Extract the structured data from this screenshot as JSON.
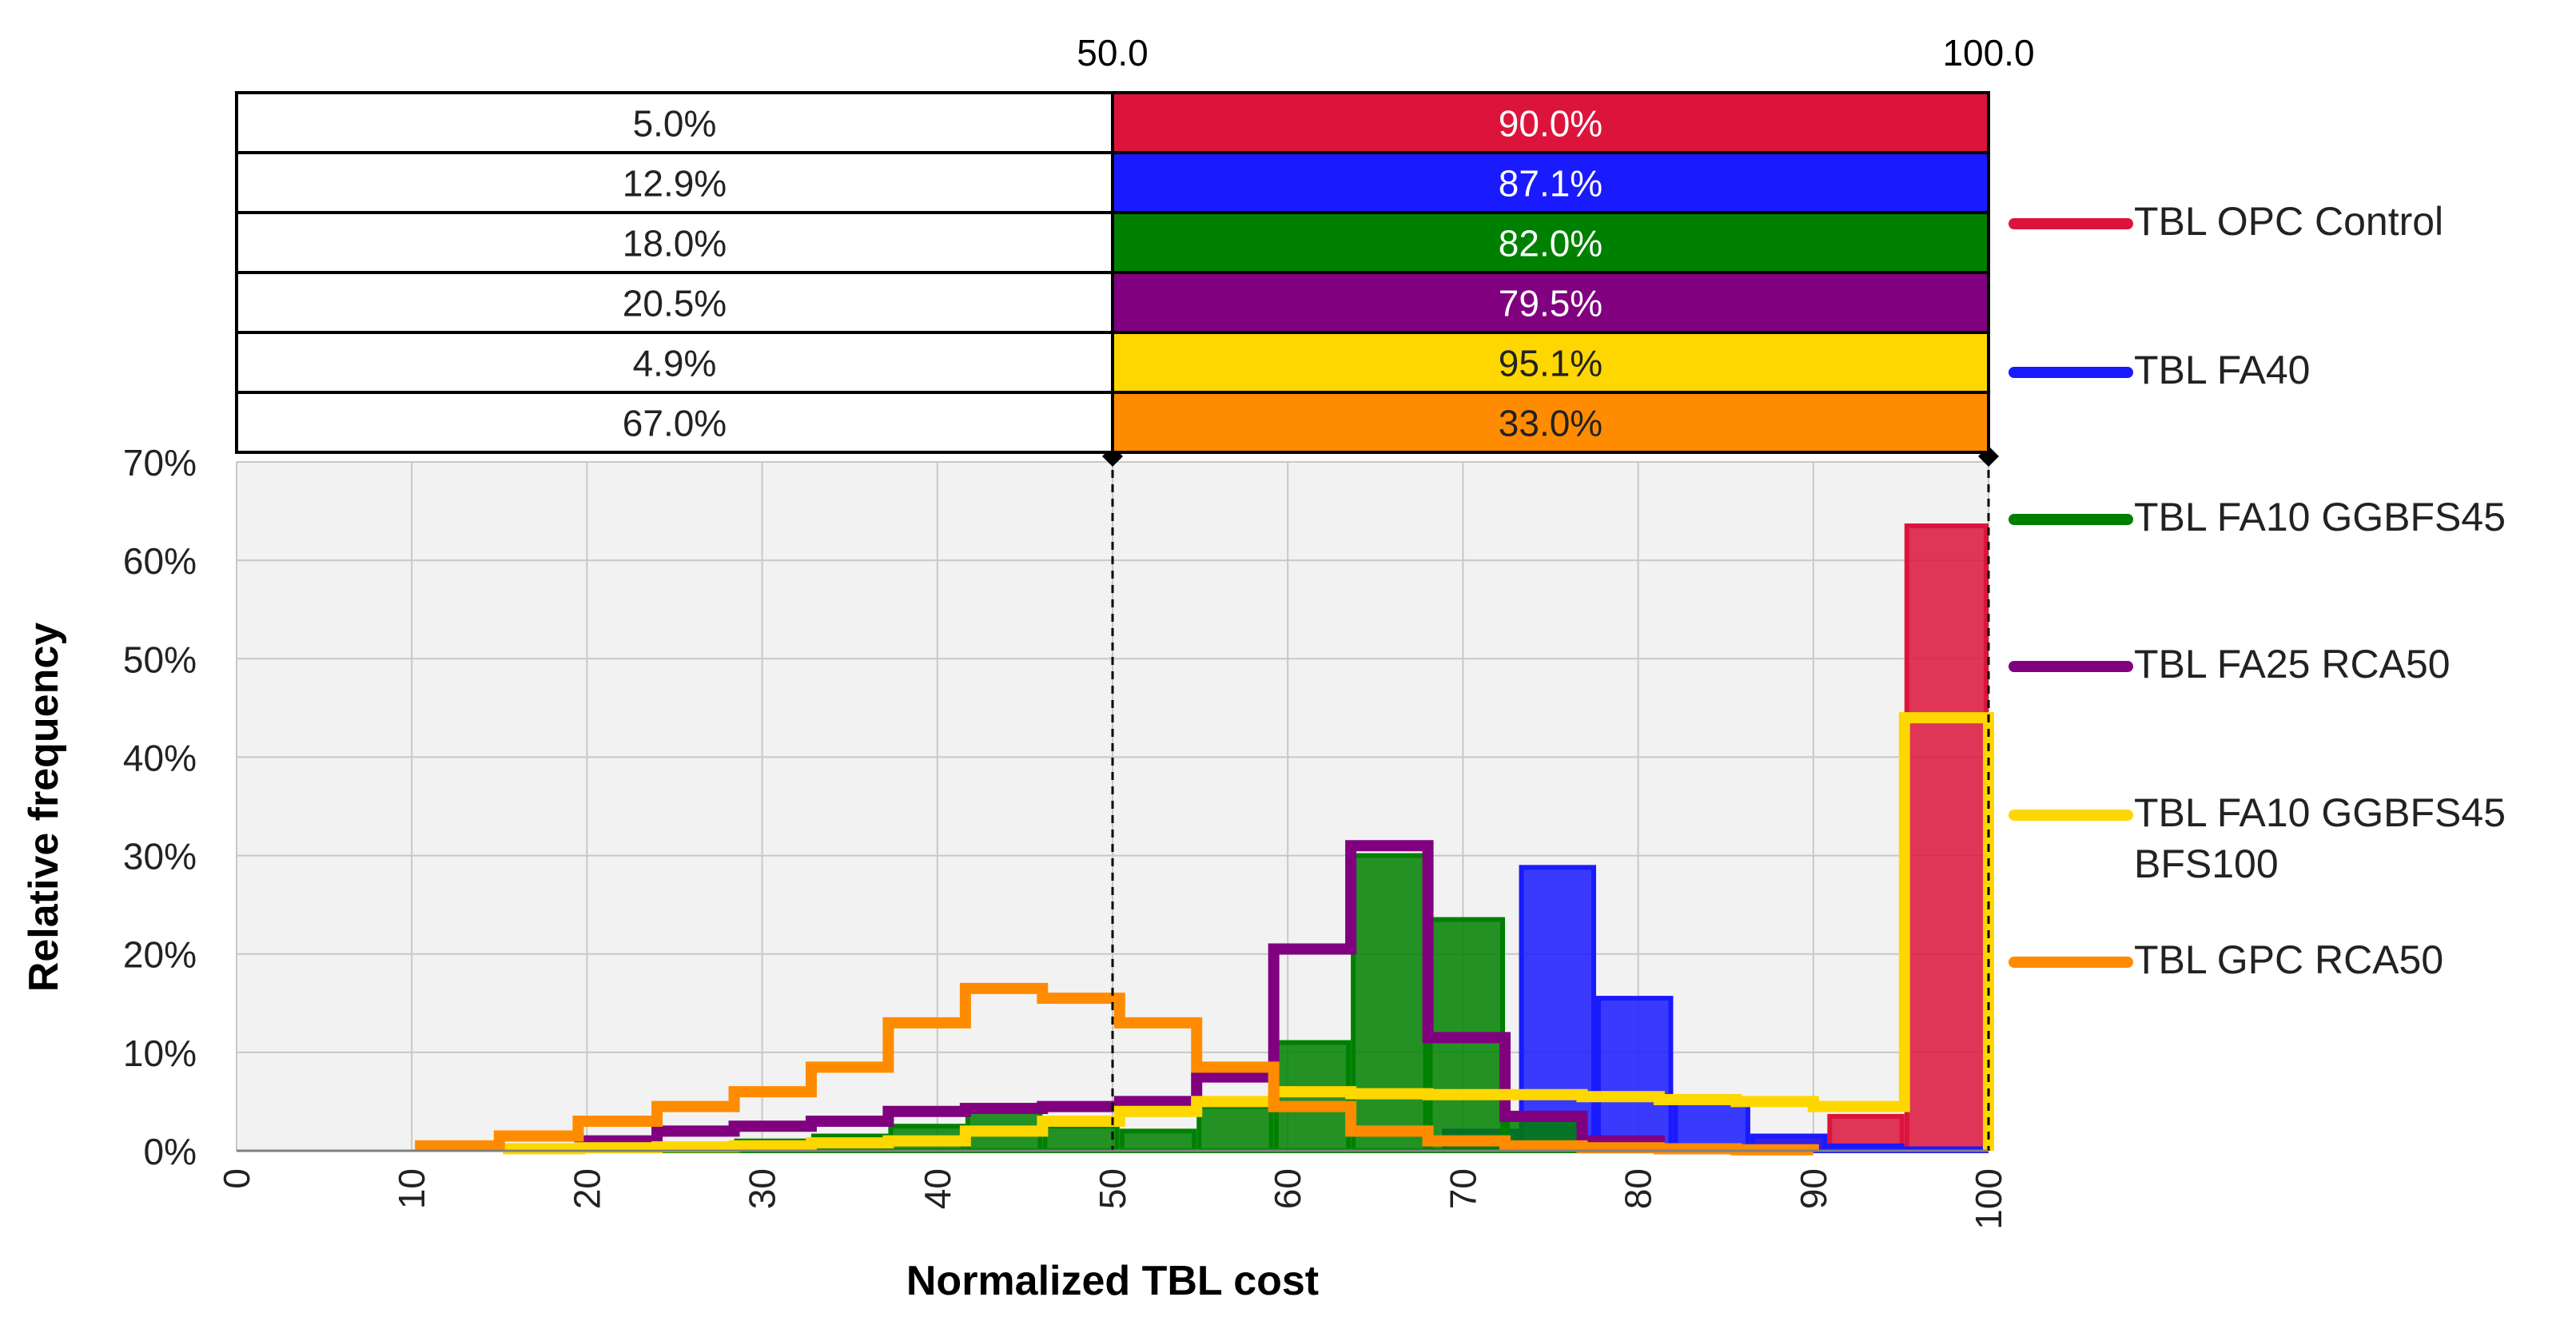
{
  "chart_data": {
    "type": "histogram-step",
    "xlabel": "Normalized TBL cost",
    "ylabel": "Relative frequency",
    "xlim": [
      0,
      100
    ],
    "ylim": [
      0,
      70
    ],
    "x_ticks": [
      "0",
      "10",
      "20",
      "30",
      "40",
      "50",
      "60",
      "70",
      "80",
      "90",
      "100"
    ],
    "y_ticks": [
      "0%",
      "10%",
      "20%",
      "30%",
      "40%",
      "50%",
      "60%",
      "70%"
    ],
    "threshold_labels": [
      "50.0",
      "100.0"
    ],
    "thresholds": [
      50,
      100
    ],
    "summary_table": {
      "left_header": "50.0",
      "right_header": "100.0",
      "rows": [
        {
          "series": "TBL OPC Control",
          "below": "5.0%",
          "above": "90.0%",
          "color": "#dc143c"
        },
        {
          "series": "TBL FA40",
          "below": "12.9%",
          "above": "87.1%",
          "color": "#1a1aff"
        },
        {
          "series": "TBL FA10 GGBFS45",
          "below": "18.0%",
          "above": "82.0%",
          "color": "#008000"
        },
        {
          "series": "TBL FA25 RCA50",
          "below": "20.5%",
          "above": "79.5%",
          "color": "#800080"
        },
        {
          "series": "TBL FA10 GGBFS45 BFS100",
          "below": "4.9%",
          "above": "95.1%",
          "color": "#ffd700"
        },
        {
          "series": "TBL GPC RCA50",
          "below": "67.0%",
          "above": "33.0%",
          "color": "#ff8c00"
        }
      ]
    },
    "series": [
      {
        "name": "TBL OPC Control",
        "legend_lines": [
          "TBL OPC Control"
        ],
        "color": "#dc143c",
        "style": "filled",
        "edges": [
          86.4,
          90.8,
          95.2,
          100
        ],
        "values": [
          1.5,
          3.5,
          63.5
        ]
      },
      {
        "name": "TBL FA40",
        "legend_lines": [
          "TBL FA40"
        ],
        "color": "#1a1aff",
        "style": "filled",
        "edges": [
          68.8,
          73.2,
          77.6,
          82,
          86.4,
          90.8,
          95.2,
          100
        ],
        "values": [
          2,
          28.8,
          15.5,
          5.2,
          1.5,
          0.5,
          0.2
        ]
      },
      {
        "name": "TBL FA10 GGBFS45",
        "legend_lines": [
          "TBL FA10 GGBFS45"
        ],
        "color": "#008000",
        "style": "filled",
        "edges": [
          24,
          28.4,
          32.8,
          37.2,
          41.6,
          46,
          50.4,
          54.8,
          59.2,
          63.6,
          68,
          72.4,
          76.8
        ],
        "values": [
          0.5,
          1,
          1.5,
          2.5,
          4,
          2.5,
          2,
          4.5,
          11,
          30,
          23.5,
          3.5
        ]
      },
      {
        "name": "TBL FA25 RCA50",
        "legend_lines": [
          "TBL FA25 RCA50"
        ],
        "color": "#800080",
        "style": "outline",
        "edges": [
          19.6,
          24,
          28.4,
          32.8,
          37.2,
          41.6,
          46,
          50.4,
          54.8,
          59.2,
          63.6,
          68,
          72.4,
          76.8,
          81.2
        ],
        "values": [
          1,
          2,
          2.5,
          3,
          4,
          4.3,
          4.5,
          5,
          7.5,
          20.5,
          31,
          11.5,
          3.5,
          1
        ]
      },
      {
        "name": "TBL FA10 GGBFS45 BFS100",
        "legend_lines": [
          "TBL FA10 GGBFS45",
          "BFS100"
        ],
        "color": "#ffd700",
        "style": "outline",
        "edges": [
          15.2,
          19.6,
          24,
          28.4,
          32.8,
          37.2,
          41.6,
          46,
          50.4,
          54.8,
          59.2,
          63.6,
          68,
          72.4,
          76.8,
          81.2,
          85.6,
          90,
          95.2,
          100
        ],
        "values": [
          0.2,
          0.3,
          0.4,
          0.5,
          0.8,
          1,
          2,
          3,
          4,
          5,
          6,
          5.8,
          5.7,
          5.7,
          5.5,
          5.2,
          5,
          4.5,
          44
        ]
      },
      {
        "name": "TBL GPC RCA50",
        "legend_lines": [
          "TBL GPC RCA50"
        ],
        "color": "#ff8c00",
        "style": "outline",
        "edges": [
          10.5,
          15,
          19.5,
          24,
          28.4,
          32.8,
          37.2,
          41.6,
          46,
          50.4,
          54.8,
          59.2,
          63.6,
          68,
          72.4,
          76.8,
          81.2,
          85.6,
          90
        ],
        "values": [
          0.5,
          1.5,
          3,
          4.5,
          6,
          8.5,
          13,
          16.5,
          15.5,
          13,
          8.5,
          4.5,
          2,
          1,
          0.5,
          0.3,
          0.2,
          0.1
        ]
      }
    ]
  }
}
